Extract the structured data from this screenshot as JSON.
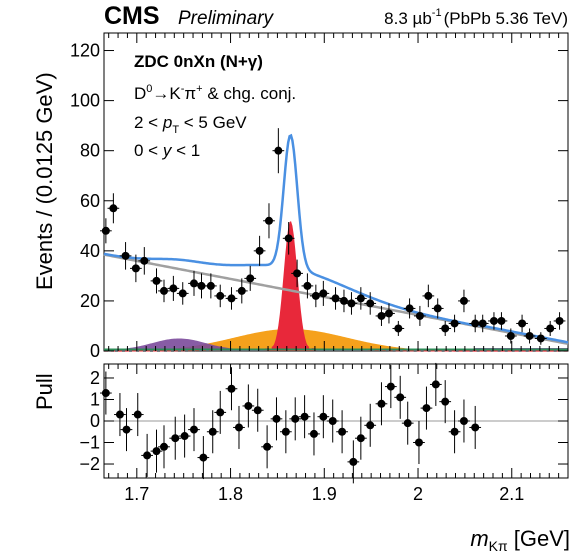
{
  "header": {
    "experiment": "CMS",
    "status": "Preliminary",
    "lumi": "8.3 µb",
    "lumi_exp": "-1",
    "system": "(PbPb 5.36 TeV)"
  },
  "legend": {
    "line1": "ZDC 0nXn (N+γ)",
    "line2_a": "D",
    "line2_sup1": "0",
    "line2_b": "→K",
    "line2_sup2": "-",
    "line2_c": "π",
    "line2_sup3": "+",
    "line2_d": " & chg. conj.",
    "line3_a": "2 < ",
    "line3_p": "p",
    "line3_sub": "T",
    "line3_b": " < 5 GeV",
    "line4_a": "0 < ",
    "line4_y": "y",
    "line4_b": " < 1"
  },
  "axes": {
    "ylabel_top": "Events / (0.0125 GeV)",
    "ylabel_bottom": "Pull",
    "xlabel_m": "m",
    "xlabel_sub": "Kπ",
    "xlabel_unit": " [GeV]"
  },
  "chart_data": [
    {
      "type": "scatter",
      "panel": "main",
      "xlim": [
        1.665,
        2.16
      ],
      "ylim": [
        0,
        127
      ],
      "x_ticks": [
        "1.7",
        "1.8",
        "1.9",
        "2",
        "2.1"
      ],
      "y_ticks": [
        "0",
        "20",
        "40",
        "60",
        "80",
        "100",
        "120"
      ],
      "x_tick_values": [
        1.7,
        1.8,
        1.9,
        2.0,
        2.1
      ],
      "y_tick_values": [
        0,
        20,
        40,
        60,
        80,
        100,
        120
      ],
      "colors": {
        "total_fit": "#4a90e2",
        "combinatorial": "#a0a0a0",
        "signal": "#e8283a",
        "misid": "#f5a11c",
        "partial": "#7b4a9b",
        "extra": "#2e8b57"
      },
      "series": [
        {
          "points": [
            [
              1.667,
              48,
              5
            ],
            [
              1.675,
              57,
              6
            ],
            [
              1.688,
              38,
              5.5
            ],
            [
              1.699,
              33,
              5.5
            ],
            [
              1.708,
              36,
              5.5
            ],
            [
              1.721,
              28,
              5
            ],
            [
              1.729,
              24,
              4.5
            ],
            [
              1.739,
              25,
              5
            ],
            [
              1.749,
              23,
              4.5
            ],
            [
              1.761,
              27,
              5
            ],
            [
              1.769,
              26,
              5
            ],
            [
              1.779,
              26,
              5
            ],
            [
              1.789,
              22,
              4.5
            ],
            [
              1.801,
              21,
              4.5
            ],
            [
              1.812,
              24,
              5
            ],
            [
              1.821,
              29,
              5
            ],
            [
              1.831,
              40,
              6
            ],
            [
              1.841,
              52,
              7
            ],
            [
              1.851,
              80,
              9
            ],
            [
              1.862,
              45,
              6.5
            ],
            [
              1.871,
              31,
              5.5
            ],
            [
              1.882,
              26,
              5
            ],
            [
              1.891,
              22,
              4.5
            ],
            [
              1.899,
              23,
              5
            ],
            [
              1.912,
              21,
              4.5
            ],
            [
              1.921,
              20,
              4.5
            ],
            [
              1.929,
              19,
              4.5
            ],
            [
              1.939,
              21,
              4.5
            ],
            [
              1.949,
              19,
              4.5
            ],
            [
              1.961,
              14,
              4
            ],
            [
              1.969,
              15,
              4
            ],
            [
              1.979,
              9,
              3
            ],
            [
              1.991,
              17,
              4
            ],
            [
              2.002,
              14,
              4
            ],
            [
              2.011,
              22,
              4.5
            ],
            [
              2.021,
              17,
              4
            ],
            [
              2.029,
              9,
              3
            ],
            [
              2.039,
              11,
              3.5
            ],
            [
              2.049,
              20,
              4.5
            ],
            [
              2.061,
              11,
              3.5
            ],
            [
              2.069,
              11,
              3.5
            ],
            [
              2.081,
              12,
              3.5
            ],
            [
              2.089,
              12,
              3.5
            ],
            [
              2.099,
              6,
              3
            ],
            [
              2.111,
              11,
              3.5
            ],
            [
              2.119,
              6,
              3
            ],
            [
              2.131,
              5,
              2.5
            ],
            [
              2.141,
              9,
              3
            ],
            [
              2.151,
              12,
              3.5
            ]
          ]
        }
      ]
    },
    {
      "type": "scatter",
      "panel": "pull",
      "xlim": [
        1.665,
        2.16
      ],
      "ylim": [
        -2.65,
        2.65
      ],
      "y_ticks": [
        "−2",
        "−1",
        "0",
        "1",
        "2"
      ],
      "y_tick_values": [
        -2,
        -1,
        0,
        1,
        2
      ],
      "series": [
        {
          "points": [
            [
              1.667,
              1.3
            ],
            [
              1.682,
              0.3
            ],
            [
              1.689,
              -0.4
            ],
            [
              1.701,
              0.3
            ],
            [
              1.711,
              -1.6
            ],
            [
              1.721,
              -1.4
            ],
            [
              1.729,
              -1.2
            ],
            [
              1.741,
              -0.8
            ],
            [
              1.751,
              -0.7
            ],
            [
              1.761,
              -0.4
            ],
            [
              1.771,
              -1.7
            ],
            [
              1.781,
              -0.5
            ],
            [
              1.789,
              0.4
            ],
            [
              1.801,
              1.5
            ],
            [
              1.809,
              -0.3
            ],
            [
              1.819,
              0.7
            ],
            [
              1.829,
              0.5
            ],
            [
              1.839,
              -1.2
            ],
            [
              1.849,
              0.1
            ],
            [
              1.859,
              -0.5
            ],
            [
              1.869,
              0.1
            ],
            [
              1.879,
              0.2
            ],
            [
              1.889,
              -0.6
            ],
            [
              1.899,
              0.2
            ],
            [
              1.909,
              0.0
            ],
            [
              1.919,
              -0.5
            ],
            [
              1.931,
              -1.9
            ],
            [
              1.939,
              -0.8
            ],
            [
              1.949,
              -0.2
            ],
            [
              1.961,
              0.8
            ],
            [
              1.971,
              1.6
            ],
            [
              1.981,
              1.1
            ],
            [
              1.989,
              -0.1
            ],
            [
              2.001,
              -1.0
            ],
            [
              2.009,
              0.6
            ],
            [
              2.019,
              1.7
            ],
            [
              2.029,
              0.9
            ],
            [
              2.039,
              -0.5
            ],
            [
              2.049,
              0.0
            ],
            [
              2.061,
              -0.3
            ]
          ]
        }
      ]
    }
  ]
}
